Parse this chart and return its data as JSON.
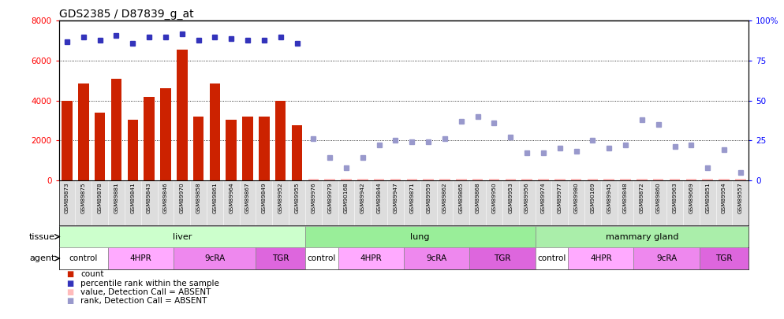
{
  "title": "GDS2385 / D87839_g_at",
  "samples": [
    "GSM89873",
    "GSM89875",
    "GSM89878",
    "GSM89881",
    "GSM89841",
    "GSM89843",
    "GSM89846",
    "GSM89970",
    "GSM89858",
    "GSM89861",
    "GSM89964",
    "GSM89867",
    "GSM89849",
    "GSM89952",
    "GSM89955",
    "GSM89976",
    "GSM89979",
    "GSM90168",
    "GSM89942",
    "GSM89844",
    "GSM89947",
    "GSM89871",
    "GSM89959",
    "GSM89862",
    "GSM89865",
    "GSM89868",
    "GSM89950",
    "GSM89953",
    "GSM89956",
    "GSM89974",
    "GSM89977",
    "GSM89980",
    "GSM90169",
    "GSM89945",
    "GSM89848",
    "GSM89872",
    "GSM89860",
    "GSM89963",
    "GSM89669",
    "GSM89851",
    "GSM89954",
    "GSM89557"
  ],
  "bar_values": [
    4000,
    4850,
    3400,
    5100,
    3050,
    4200,
    4600,
    6550,
    3200,
    4850,
    3050,
    3200,
    3200,
    4000,
    2750,
    0,
    0,
    0,
    0,
    0,
    0,
    0,
    0,
    0,
    0,
    0,
    0,
    0,
    0,
    0,
    0,
    0,
    0,
    0,
    0,
    0,
    0,
    0,
    0,
    0,
    0,
    0
  ],
  "percentile_rank": [
    87,
    90,
    88,
    91,
    86,
    90,
    90,
    92,
    88,
    90,
    89,
    88,
    88,
    90,
    86,
    26,
    14,
    8,
    14,
    22,
    25,
    24,
    24,
    26,
    37,
    40,
    36,
    27,
    17,
    17,
    20,
    18,
    25,
    20,
    22,
    38,
    35,
    21,
    22,
    8,
    19,
    5
  ],
  "is_absent": [
    false,
    false,
    false,
    false,
    false,
    false,
    false,
    false,
    false,
    false,
    false,
    false,
    false,
    false,
    false,
    true,
    true,
    true,
    true,
    true,
    true,
    true,
    true,
    true,
    true,
    true,
    true,
    true,
    true,
    true,
    true,
    true,
    true,
    true,
    true,
    true,
    true,
    true,
    true,
    true,
    true,
    true
  ],
  "absent_value_markers": [
    15,
    16,
    17,
    18,
    19,
    20,
    21,
    22,
    23,
    24,
    25,
    26,
    27,
    28,
    29,
    30,
    31,
    32,
    33,
    34,
    35,
    36,
    37,
    38,
    39,
    40,
    41
  ],
  "tissues": [
    {
      "label": "liver",
      "start": 0,
      "end": 15,
      "color": "#ccffcc"
    },
    {
      "label": "lung",
      "start": 15,
      "end": 29,
      "color": "#99ee99"
    },
    {
      "label": "mammary gland",
      "start": 29,
      "end": 42,
      "color": "#aaeeaa"
    }
  ],
  "agents": [
    {
      "label": "control",
      "start": 0,
      "end": 3,
      "color": "#ffffff"
    },
    {
      "label": "4HPR",
      "start": 3,
      "end": 7,
      "color": "#ffaaff"
    },
    {
      "label": "9cRA",
      "start": 7,
      "end": 12,
      "color": "#ee88ee"
    },
    {
      "label": "TGR",
      "start": 12,
      "end": 15,
      "color": "#dd66dd"
    },
    {
      "label": "control",
      "start": 15,
      "end": 17,
      "color": "#ffffff"
    },
    {
      "label": "4HPR",
      "start": 17,
      "end": 21,
      "color": "#ffaaff"
    },
    {
      "label": "9cRA",
      "start": 21,
      "end": 25,
      "color": "#ee88ee"
    },
    {
      "label": "TGR",
      "start": 25,
      "end": 29,
      "color": "#dd66dd"
    },
    {
      "label": "control",
      "start": 29,
      "end": 31,
      "color": "#ffffff"
    },
    {
      "label": "4HPR",
      "start": 31,
      "end": 35,
      "color": "#ffaaff"
    },
    {
      "label": "9cRA",
      "start": 35,
      "end": 39,
      "color": "#ee88ee"
    },
    {
      "label": "TGR",
      "start": 39,
      "end": 42,
      "color": "#dd66dd"
    }
  ],
  "bar_color": "#cc2200",
  "rank_color": "#3333bb",
  "absent_rank_color": "#9999cc",
  "absent_bar_color": "#ffbbbb",
  "left_ylim": [
    0,
    8000
  ],
  "right_ylim": [
    0,
    100
  ],
  "left_yticks": [
    0,
    2000,
    4000,
    6000,
    8000
  ],
  "right_yticks": [
    0,
    25,
    50,
    75,
    100
  ],
  "right_yticklabels": [
    "0",
    "25",
    "50",
    "75",
    "100%"
  ],
  "legend_items": [
    {
      "color": "#cc2200",
      "label": "count"
    },
    {
      "color": "#3333bb",
      "label": "percentile rank within the sample"
    },
    {
      "color": "#ffbbbb",
      "label": "value, Detection Call = ABSENT"
    },
    {
      "color": "#9999cc",
      "label": "rank, Detection Call = ABSENT"
    }
  ]
}
